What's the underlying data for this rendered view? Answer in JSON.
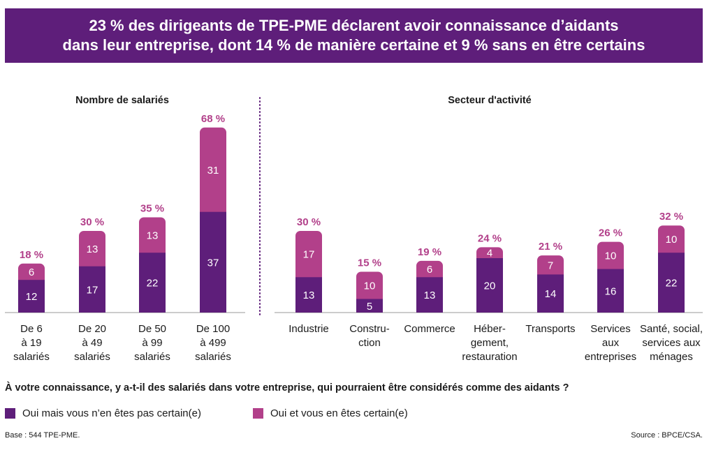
{
  "title_line1": "23 % des dirigeants de TPE-PME déclarent avoir connaissance d’aidants",
  "title_line2": "dans leur entreprise, dont 14 % de manière certaine et 9 % sans en être certains",
  "question": "À votre connaissance, y a-t-il des salariés dans votre entreprise, qui pourraient être considérés comme des aidants ?",
  "legend": {
    "not_certain": "Oui mais vous n’en êtes pas certain(e)",
    "certain": "Oui et vous en êtes certain(e)"
  },
  "base": "Base : 544 TPE-PME.",
  "source": "Source : BPCE/CSA.",
  "colors": {
    "banner": "#5e1e7a",
    "not_certain": "#5e1e7a",
    "certain": "#b2408a",
    "total_label": "#b2408a"
  },
  "chart_data": [
    {
      "type": "bar",
      "stacked": true,
      "title": "Nombre de salariés",
      "categories": [
        [
          "De 6",
          "à 19",
          "salariés"
        ],
        [
          "De 20",
          "à 49",
          "salariés"
        ],
        [
          "De 50",
          "à 99",
          "salariés"
        ],
        [
          "De 100",
          "à 499",
          "salariés"
        ]
      ],
      "series": [
        {
          "name": "Oui mais vous n’en êtes pas certain(e)",
          "key": "not_certain",
          "values": [
            12,
            17,
            22,
            37
          ]
        },
        {
          "name": "Oui et vous en êtes certain(e)",
          "key": "certain",
          "values": [
            6,
            13,
            13,
            31
          ]
        }
      ],
      "totals": [
        "18 %",
        "30 %",
        "35 %",
        "68 %"
      ],
      "ylim": [
        0,
        70
      ]
    },
    {
      "type": "bar",
      "stacked": true,
      "title": "Secteur d'activité",
      "categories": [
        [
          "Industrie"
        ],
        [
          "Constru-",
          "ction"
        ],
        [
          "Commerce"
        ],
        [
          "Héber-",
          "gement,",
          "restauration"
        ],
        [
          "Transports"
        ],
        [
          "Services",
          "aux",
          "entreprises"
        ],
        [
          "Santé, social,",
          "services aux",
          "ménages"
        ]
      ],
      "series": [
        {
          "name": "Oui mais vous n’en êtes pas certain(e)",
          "key": "not_certain",
          "values": [
            13,
            5,
            13,
            20,
            14,
            16,
            22
          ]
        },
        {
          "name": "Oui et vous en êtes certain(e)",
          "key": "certain",
          "values": [
            17,
            10,
            6,
            4,
            7,
            10,
            10
          ]
        }
      ],
      "totals": [
        "30 %",
        "15 %",
        "19 %",
        "24 %",
        "21 %",
        "26 %",
        "32 %"
      ],
      "ylim": [
        0,
        70
      ]
    }
  ]
}
